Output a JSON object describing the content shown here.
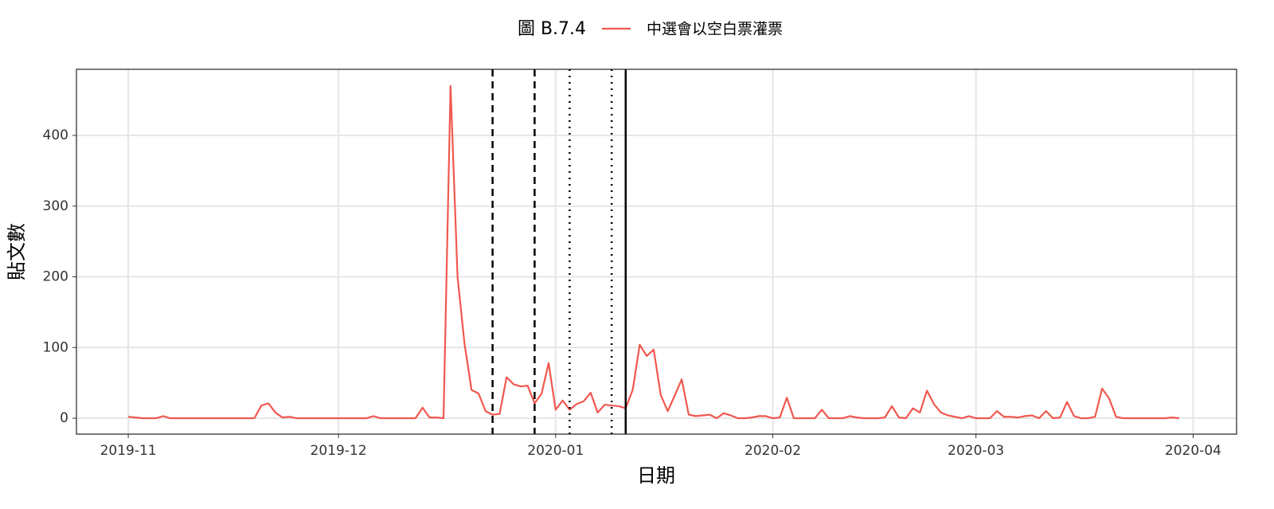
{
  "chart_data": {
    "type": "line",
    "title": "圖 B.7.4",
    "x_label": "日期",
    "y_label": "貼文數",
    "x": [
      0,
      1,
      2,
      3,
      4,
      5,
      6,
      7,
      8,
      9,
      10,
      11,
      12,
      13,
      14,
      15,
      16,
      17,
      18,
      19,
      20,
      21,
      22,
      23,
      24,
      25,
      26,
      27,
      28,
      29,
      30,
      31,
      32,
      33,
      34,
      35,
      36,
      37,
      38,
      39,
      40,
      41,
      42,
      43,
      44,
      45,
      46,
      47,
      48,
      49,
      50,
      51,
      52,
      53,
      54,
      55,
      56,
      57,
      58,
      59,
      60,
      61,
      62,
      63,
      64,
      65,
      66,
      67,
      68,
      69,
      70,
      71,
      72,
      73,
      74,
      75,
      76,
      77,
      78,
      79,
      80,
      81,
      82,
      83,
      84,
      85,
      86,
      87,
      88,
      89,
      90,
      91,
      92,
      93,
      94,
      95,
      96,
      97,
      98,
      99,
      100,
      101,
      102,
      103,
      104,
      105,
      106,
      107,
      108,
      109,
      110,
      111,
      112,
      113,
      114,
      115,
      116,
      117,
      118,
      119,
      120,
      121,
      122,
      123,
      124,
      125,
      126,
      127,
      128,
      129,
      130,
      131,
      132,
      133,
      134,
      135,
      136,
      137,
      138,
      139,
      140,
      141,
      142,
      143,
      144,
      145,
      146,
      147,
      148,
      149,
      150
    ],
    "series": [
      {
        "name": "中選會以空白票灌票",
        "color": "#f0584f",
        "values": [
          2,
          1,
          0,
          0,
          0,
          3,
          0,
          0,
          0,
          0,
          0,
          0,
          0,
          0,
          0,
          0,
          0,
          0,
          0,
          18,
          21,
          8,
          1,
          2,
          0,
          0,
          0,
          0,
          0,
          0,
          0,
          0,
          0,
          0,
          0,
          3,
          0,
          0,
          0,
          0,
          0,
          0,
          15,
          1,
          1,
          0,
          470,
          200,
          105,
          40,
          35,
          10,
          5,
          6,
          58,
          48,
          45,
          46,
          21,
          35,
          78,
          12,
          25,
          12,
          20,
          24,
          36,
          8,
          19,
          18,
          17,
          14,
          40,
          104,
          88,
          97,
          33,
          10,
          32,
          55,
          5,
          3,
          4,
          5,
          0,
          7,
          4,
          0,
          0,
          1,
          3,
          3,
          0,
          1,
          29,
          0,
          0,
          0,
          0,
          12,
          0,
          0,
          0,
          3,
          1,
          0,
          0,
          0,
          1,
          17,
          1,
          0,
          14,
          8,
          39,
          20,
          8,
          4,
          2,
          0,
          3,
          0,
          0,
          0,
          10,
          2,
          2,
          1,
          3,
          4,
          0,
          10,
          0,
          1,
          23,
          3,
          0,
          0,
          2,
          42,
          28,
          2,
          0,
          0,
          0,
          0,
          0,
          0,
          0,
          1,
          0
        ]
      }
    ],
    "xlim": [
      -7.4,
      158.2
    ],
    "xticks": [
      {
        "value": 0,
        "label": "2019-11"
      },
      {
        "value": 30,
        "label": "2019-12"
      },
      {
        "value": 61,
        "label": "2020-01"
      },
      {
        "value": 92,
        "label": "2020-02"
      },
      {
        "value": 121,
        "label": "2020-03"
      },
      {
        "value": 152,
        "label": "2020-04"
      }
    ],
    "ylim": [
      -22.5,
      493.5
    ],
    "yticks": [
      0,
      100,
      200,
      300,
      400
    ],
    "grid": true,
    "reference_lines": [
      {
        "x": 52,
        "style": "dashed"
      },
      {
        "x": 58,
        "style": "dashed"
      },
      {
        "x": 63,
        "style": "dotted"
      },
      {
        "x": 69,
        "style": "dotted"
      },
      {
        "x": 71,
        "style": "solid"
      }
    ]
  }
}
